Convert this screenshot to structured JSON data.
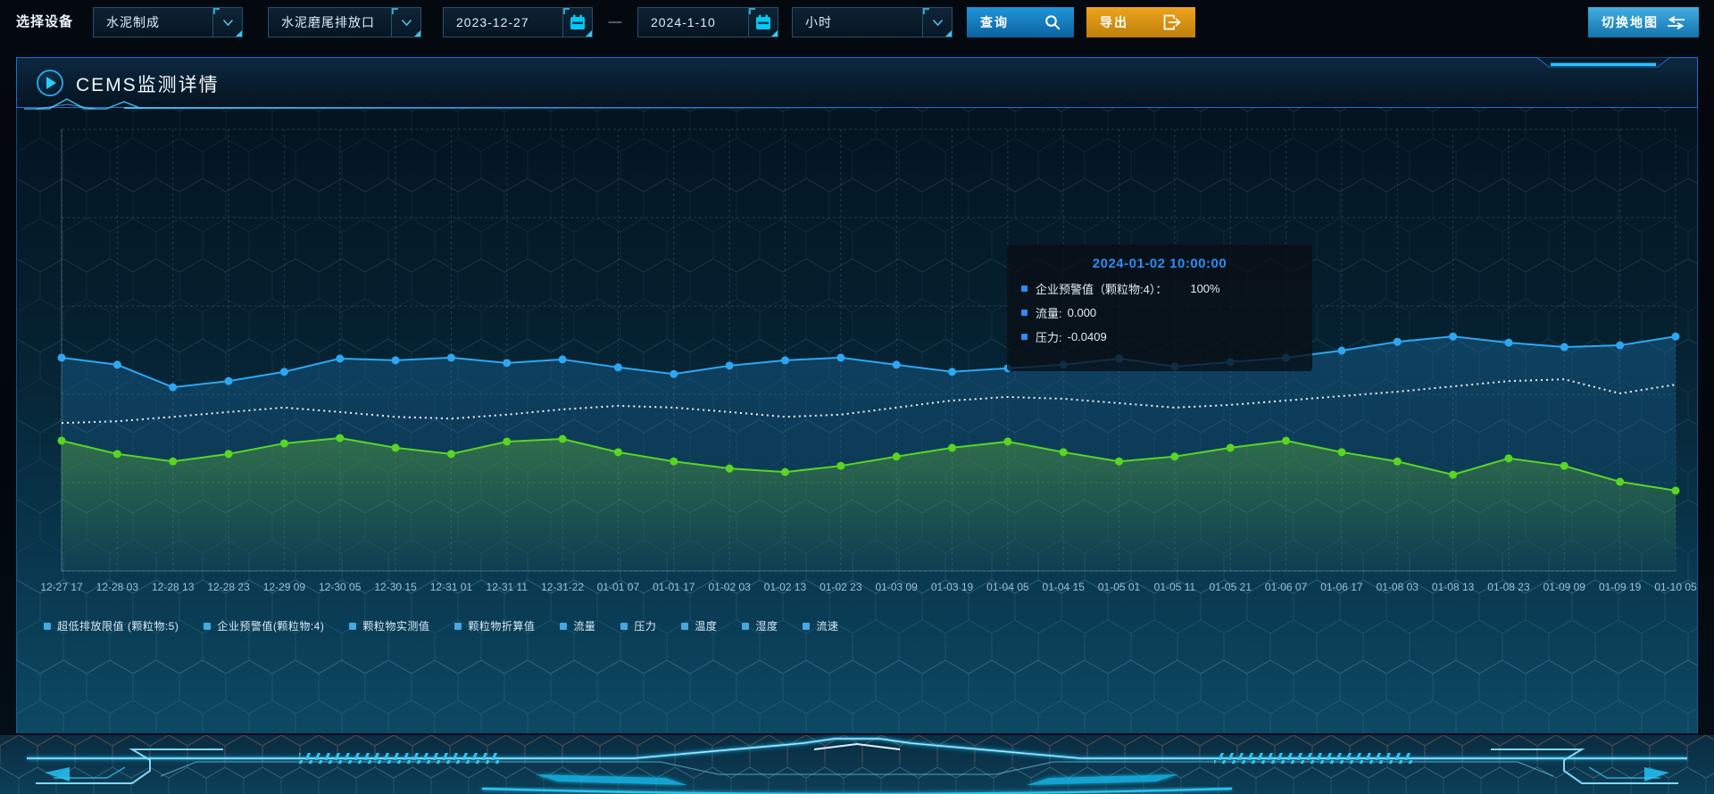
{
  "toolbar": {
    "device_label": "选择设备",
    "process_select": {
      "value": "水泥制成"
    },
    "outlet_select": {
      "value": "水泥磨尾排放口"
    },
    "date_start": "2023-12-27",
    "date_separator": "—",
    "date_end": "2024-1-10",
    "interval_select": {
      "value": "小时"
    },
    "query_button": {
      "label": "查询",
      "color_top": "#1f95da",
      "color_bottom": "#0d629f"
    },
    "export_button": {
      "label": "导出",
      "color_top": "#eda41d",
      "color_bottom": "#c07f0a"
    },
    "switch_map_button": {
      "label": "切换地图",
      "color_top": "#41aee2",
      "color_bottom": "#1473ad"
    }
  },
  "panel": {
    "title": "CEMS监测详情"
  },
  "tooltip": {
    "title": "2024-01-02 10:00:00",
    "title_color": "#2d8cf0",
    "marker_color": "#2d8cf0",
    "items": [
      {
        "label": "企业预警值（颗粒物:4）：",
        "value": "100%"
      },
      {
        "label": "流量:",
        "value": "0.000"
      },
      {
        "label": "压力:",
        "value": "-0.0409"
      }
    ]
  },
  "legend": {
    "marker_color": "#45a8e0",
    "items": [
      "超低排放限值 (颗粒物:5)",
      "企业预警值(颗粒物:4)",
      "颗粒物实测值",
      "颗粒物折算值",
      "流量",
      "压力",
      "温度",
      "湿度",
      "流速"
    ]
  },
  "chart_data": {
    "type": "line",
    "title": "CEMS监测详情",
    "x": [
      "12-27 17",
      "12-28 03",
      "12-28 13",
      "12-28 23",
      "12-29 09",
      "12-30 05",
      "12-30 15",
      "12-31 01",
      "12-31 11",
      "12-31-22",
      "01-01 07",
      "01-01 17",
      "01-02 03",
      "01-02 13",
      "01-02 23",
      "01-03 09",
      "01-03 19",
      "01-04 05",
      "01-04 15",
      "01-05 01",
      "01-05 11",
      "01-05 21",
      "01-06 07",
      "01-06 17",
      "01-08 03",
      "01-08 13",
      "01-08 23",
      "01-09 09",
      "01-09 19",
      "01-10 05"
    ],
    "y_axis": {
      "tick_labels_visible": false,
      "range": [
        0,
        100
      ]
    },
    "grid": {
      "horizontal_divisions": 5,
      "vertical_line_per_label": true,
      "style": "dashed"
    },
    "legend_position": "bottom",
    "series": [
      {
        "name": "流量",
        "color": "#2ea7f2",
        "line_style": "solid",
        "markers": true,
        "area": true,
        "gradient": "gradBlue",
        "values": [
          48.3,
          46.7,
          41.6,
          43.0,
          45.1,
          48.1,
          47.7,
          48.3,
          47.1,
          47.9,
          46.1,
          44.6,
          46.5,
          47.7,
          48.3,
          46.7,
          45.1,
          45.9,
          46.7,
          48.1,
          46.3,
          47.3,
          48.3,
          49.9,
          51.9,
          53.1,
          51.7,
          50.7,
          51.1,
          53.1
        ]
      },
      {
        "name": "企业预警值(颗粒物:4)",
        "color": "#edf3f6",
        "line_style": "dotted",
        "markers": false,
        "area": false,
        "gradient": null,
        "values": [
          33.5,
          33.9,
          34.9,
          36.0,
          37.0,
          36.0,
          34.9,
          34.5,
          35.4,
          36.6,
          37.4,
          37.0,
          36.0,
          34.9,
          35.4,
          37.0,
          38.6,
          39.4,
          39.0,
          38.0,
          37.0,
          37.6,
          38.6,
          39.6,
          40.6,
          41.8,
          43.0,
          43.4,
          40.2,
          42.2
        ]
      },
      {
        "name": "压力",
        "color": "#58d622",
        "line_style": "solid",
        "markers": true,
        "area": true,
        "gradient": "gradGreen",
        "values": [
          29.5,
          26.5,
          24.8,
          26.5,
          28.9,
          30.1,
          27.9,
          26.5,
          29.3,
          29.9,
          26.9,
          24.8,
          23.2,
          22.4,
          23.8,
          25.9,
          27.9,
          29.3,
          26.9,
          24.8,
          25.9,
          27.9,
          29.5,
          26.9,
          24.8,
          21.8,
          25.5,
          23.8,
          20.2,
          18.2
        ]
      }
    ]
  }
}
